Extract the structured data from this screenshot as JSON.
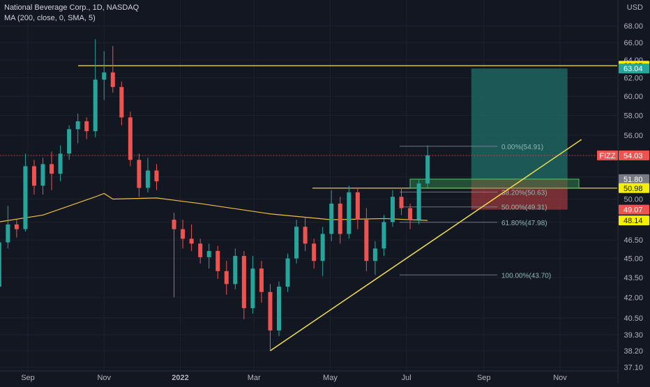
{
  "header": {
    "title": "National Beverage Corp., 1D, NASDAQ",
    "indicator": "MA (200, close, 0, SMA, 5)",
    "currency": "USD"
  },
  "colors": {
    "background": "#131722",
    "up": "#26a69a",
    "down": "#ef5350",
    "ma": "#f0c040",
    "trend": "#f2e14c",
    "grid": "#1e222d"
  },
  "chart_data": {
    "type": "candlestick",
    "symbol": "FIZZ",
    "interval": "1D",
    "exchange": "NASDAQ",
    "last_price": 54.03,
    "x_ticks": [
      "Sep",
      "Nov",
      "2022",
      "Mar",
      "May",
      "Jul",
      "Sep",
      "Nov"
    ],
    "y_ticks": [
      37.1,
      38.2,
      39.3,
      40.5,
      42.0,
      43.5,
      45.0,
      46.5,
      48.0,
      50.0,
      52.0,
      54.0,
      56.0,
      58.0,
      60.0,
      62.0,
      64.0,
      66.0,
      68.0
    ],
    "y_scale": "log",
    "price_labels": [
      {
        "value": 63.35,
        "text": "63.35",
        "kind": "level"
      },
      {
        "value": 63.04,
        "text": "63.04",
        "kind": "target"
      },
      {
        "value": 54.03,
        "text": "54.03",
        "kind": "last",
        "name": "FIZZ"
      },
      {
        "value": 51.8,
        "text": "51.80",
        "kind": "entry"
      },
      {
        "value": 50.98,
        "text": "50.98",
        "kind": "level"
      },
      {
        "value": 49.07,
        "text": "49.07",
        "kind": "stop"
      },
      {
        "value": 48.14,
        "text": "48.14",
        "kind": "ma"
      }
    ],
    "fibonacci": [
      {
        "label": "0.00%(54.91)",
        "value": 54.91
      },
      {
        "label": "38.20%(50.63)",
        "value": 50.63
      },
      {
        "label": "50.00%(49.31)",
        "value": 49.31
      },
      {
        "label": "61.80%(47.98)",
        "value": 47.98
      },
      {
        "label": "100.00%(43.70)",
        "value": 43.7
      }
    ],
    "horizontal_levels": [
      63.35,
      50.98
    ],
    "candles_weekly_approx": [
      {
        "date": "2021-08-02",
        "o": 45.6,
        "h": 46.2,
        "l": 42.0,
        "c": 42.8
      },
      {
        "date": "2021-08-09",
        "o": 42.8,
        "h": 46.8,
        "l": 42.5,
        "c": 46.3
      },
      {
        "date": "2021-08-16",
        "o": 46.3,
        "h": 49.4,
        "l": 45.8,
        "c": 47.8
      },
      {
        "date": "2021-08-23",
        "o": 47.8,
        "h": 48.2,
        "l": 46.7,
        "c": 47.4
      },
      {
        "date": "2021-08-30",
        "o": 47.4,
        "h": 54.2,
        "l": 47.2,
        "c": 53.0
      },
      {
        "date": "2021-09-06",
        "o": 53.0,
        "h": 53.6,
        "l": 50.4,
        "c": 51.2
      },
      {
        "date": "2021-09-13",
        "o": 51.2,
        "h": 53.8,
        "l": 50.4,
        "c": 53.2
      },
      {
        "date": "2021-09-20",
        "o": 53.2,
        "h": 54.4,
        "l": 50.8,
        "c": 52.3
      },
      {
        "date": "2021-09-27",
        "o": 52.3,
        "h": 55.0,
        "l": 51.6,
        "c": 54.2
      },
      {
        "date": "2021-10-04",
        "o": 54.2,
        "h": 57.0,
        "l": 53.6,
        "c": 56.6
      },
      {
        "date": "2021-10-11",
        "o": 56.6,
        "h": 58.2,
        "l": 55.2,
        "c": 57.4
      },
      {
        "date": "2021-10-18",
        "o": 57.4,
        "h": 57.8,
        "l": 55.6,
        "c": 56.4
      },
      {
        "date": "2021-10-25",
        "o": 56.4,
        "h": 66.4,
        "l": 55.8,
        "c": 61.8
      },
      {
        "date": "2021-11-01",
        "o": 61.8,
        "h": 65.0,
        "l": 59.6,
        "c": 62.6
      },
      {
        "date": "2021-11-08",
        "o": 62.6,
        "h": 65.6,
        "l": 60.4,
        "c": 61.0
      },
      {
        "date": "2021-11-15",
        "o": 61.0,
        "h": 61.6,
        "l": 57.0,
        "c": 57.8
      },
      {
        "date": "2021-11-22",
        "o": 57.8,
        "h": 58.4,
        "l": 53.0,
        "c": 53.6
      },
      {
        "date": "2021-11-29",
        "o": 53.6,
        "h": 54.2,
        "l": 50.2,
        "c": 51.0
      },
      {
        "date": "2021-12-06",
        "o": 51.0,
        "h": 53.8,
        "l": 50.6,
        "c": 52.6
      },
      {
        "date": "2021-12-13",
        "o": 52.6,
        "h": 53.2,
        "l": 50.8,
        "c": 51.6
      },
      {
        "date": "2021-12-27",
        "o": 48.2,
        "h": 48.8,
        "l": 42.0,
        "c": 47.4
      },
      {
        "date": "2022-01-03",
        "o": 47.4,
        "h": 48.2,
        "l": 45.8,
        "c": 46.6
      },
      {
        "date": "2022-01-10",
        "o": 46.6,
        "h": 47.8,
        "l": 45.6,
        "c": 46.2
      },
      {
        "date": "2022-01-17",
        "o": 46.2,
        "h": 46.6,
        "l": 44.6,
        "c": 45.1
      },
      {
        "date": "2022-01-24",
        "o": 45.1,
        "h": 46.2,
        "l": 44.2,
        "c": 45.6
      },
      {
        "date": "2022-01-31",
        "o": 45.6,
        "h": 46.0,
        "l": 43.4,
        "c": 44.0
      },
      {
        "date": "2022-02-07",
        "o": 44.0,
        "h": 44.8,
        "l": 42.2,
        "c": 43.0
      },
      {
        "date": "2022-02-14",
        "o": 43.0,
        "h": 45.8,
        "l": 42.6,
        "c": 45.2
      },
      {
        "date": "2022-02-21",
        "o": 45.2,
        "h": 45.6,
        "l": 40.4,
        "c": 41.2
      },
      {
        "date": "2022-02-28",
        "o": 41.2,
        "h": 45.2,
        "l": 40.8,
        "c": 44.2
      },
      {
        "date": "2022-03-07",
        "o": 44.2,
        "h": 44.8,
        "l": 41.6,
        "c": 42.4
      },
      {
        "date": "2022-03-14",
        "o": 42.4,
        "h": 43.0,
        "l": 38.2,
        "c": 39.6
      },
      {
        "date": "2022-03-21",
        "o": 39.6,
        "h": 43.2,
        "l": 39.2,
        "c": 42.8
      },
      {
        "date": "2022-03-28",
        "o": 42.8,
        "h": 45.4,
        "l": 42.4,
        "c": 45.0
      },
      {
        "date": "2022-04-04",
        "o": 45.0,
        "h": 48.2,
        "l": 44.6,
        "c": 47.6
      },
      {
        "date": "2022-04-11",
        "o": 47.6,
        "h": 48.4,
        "l": 45.6,
        "c": 46.2
      },
      {
        "date": "2022-04-18",
        "o": 46.2,
        "h": 46.6,
        "l": 44.2,
        "c": 44.8
      },
      {
        "date": "2022-04-25",
        "o": 44.8,
        "h": 47.6,
        "l": 43.6,
        "c": 47.0
      },
      {
        "date": "2022-05-02",
        "o": 47.0,
        "h": 50.8,
        "l": 46.4,
        "c": 49.6
      },
      {
        "date": "2022-05-09",
        "o": 49.6,
        "h": 50.2,
        "l": 46.2,
        "c": 47.0
      },
      {
        "date": "2022-05-16",
        "o": 47.0,
        "h": 51.2,
        "l": 46.6,
        "c": 50.6
      },
      {
        "date": "2022-05-23",
        "o": 50.6,
        "h": 51.0,
        "l": 47.4,
        "c": 48.2
      },
      {
        "date": "2022-05-30",
        "o": 48.2,
        "h": 49.2,
        "l": 44.0,
        "c": 44.8
      },
      {
        "date": "2022-06-06",
        "o": 44.8,
        "h": 46.4,
        "l": 43.7,
        "c": 45.8
      },
      {
        "date": "2022-06-13",
        "o": 45.8,
        "h": 48.6,
        "l": 45.2,
        "c": 48.0
      },
      {
        "date": "2022-06-20",
        "o": 48.0,
        "h": 50.8,
        "l": 47.6,
        "c": 50.2
      },
      {
        "date": "2022-06-27",
        "o": 50.2,
        "h": 51.0,
        "l": 48.6,
        "c": 49.2
      },
      {
        "date": "2022-07-04",
        "o": 49.2,
        "h": 49.6,
        "l": 47.4,
        "c": 48.2
      },
      {
        "date": "2022-07-11",
        "o": 48.2,
        "h": 51.8,
        "l": 47.8,
        "c": 51.4
      },
      {
        "date": "2022-07-18",
        "o": 51.4,
        "h": 55.0,
        "l": 51.0,
        "c": 54.03
      }
    ],
    "ma_200_approx": [
      {
        "date": "2021-08-02",
        "value": 47.9
      },
      {
        "date": "2021-09-13",
        "value": 48.6
      },
      {
        "date": "2021-10-25",
        "value": 50.2
      },
      {
        "date": "2021-11-01",
        "value": 50.5
      },
      {
        "date": "2021-11-08",
        "value": 50.0
      },
      {
        "date": "2021-12-13",
        "value": 50.1
      },
      {
        "date": "2022-01-17",
        "value": 49.6
      },
      {
        "date": "2022-03-14",
        "value": 48.7
      },
      {
        "date": "2022-05-02",
        "value": 48.2
      },
      {
        "date": "2022-06-13",
        "value": 48.3
      },
      {
        "date": "2022-07-18",
        "value": 48.14
      }
    ],
    "trendline": {
      "from": {
        "date": "2022-03-14",
        "value": 38.2
      },
      "to": {
        "date": "2022-11-07",
        "value": 55.3
      }
    },
    "position": {
      "entry": 51.8,
      "target": 63.04,
      "stop": 49.07,
      "from": "2022-08-22",
      "to": "2022-11-07"
    }
  }
}
